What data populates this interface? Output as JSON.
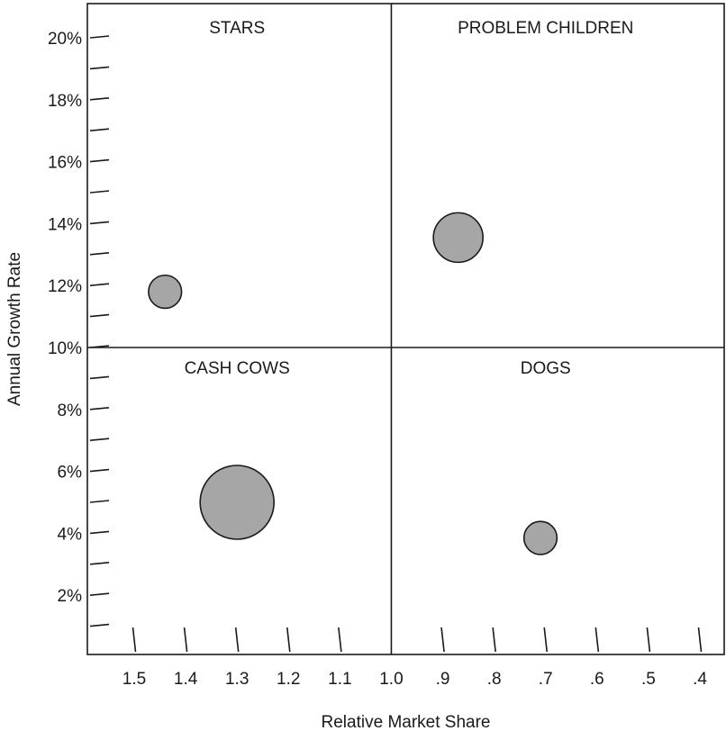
{
  "chart_data": {
    "type": "scatter",
    "title": "",
    "xlabel": "Relative Market Share",
    "ylabel": "Annual Growth Rate",
    "x_reversed": true,
    "xlim": [
      1.6,
      0.38
    ],
    "ylim": [
      0,
      21
    ],
    "x_ticks": [
      {
        "value": 1.5,
        "label": "1.5"
      },
      {
        "value": 1.4,
        "label": "1.4"
      },
      {
        "value": 1.3,
        "label": "1.3"
      },
      {
        "value": 1.2,
        "label": "1.2"
      },
      {
        "value": 1.1,
        "label": "1.1"
      },
      {
        "value": 1.0,
        "label": "1.0"
      },
      {
        "value": 0.9,
        "label": ".9"
      },
      {
        "value": 0.8,
        "label": ".8"
      },
      {
        "value": 0.7,
        "label": ".7"
      },
      {
        "value": 0.6,
        "label": ".6"
      },
      {
        "value": 0.5,
        "label": ".5"
      },
      {
        "value": 0.4,
        "label": ".4"
      }
    ],
    "y_ticks": [
      {
        "value": 1,
        "label": ""
      },
      {
        "value": 2,
        "label": "2%"
      },
      {
        "value": 3,
        "label": ""
      },
      {
        "value": 4,
        "label": "4%"
      },
      {
        "value": 5,
        "label": ""
      },
      {
        "value": 6,
        "label": "6%"
      },
      {
        "value": 7,
        "label": ""
      },
      {
        "value": 8,
        "label": "8%"
      },
      {
        "value": 9,
        "label": ""
      },
      {
        "value": 10,
        "label": "10%"
      },
      {
        "value": 11,
        "label": ""
      },
      {
        "value": 12,
        "label": "12%"
      },
      {
        "value": 13,
        "label": ""
      },
      {
        "value": 14,
        "label": "14%"
      },
      {
        "value": 15,
        "label": ""
      },
      {
        "value": 16,
        "label": "16%"
      },
      {
        "value": 17,
        "label": ""
      },
      {
        "value": 18,
        "label": "18%"
      },
      {
        "value": 19,
        "label": ""
      },
      {
        "value": 20,
        "label": "20%"
      }
    ],
    "dividers": {
      "x": 1.0,
      "y": 10
    },
    "quadrants": [
      {
        "label": "STARS",
        "x": 1.3,
        "y": 20.5
      },
      {
        "label": "PROBLEM CHILDREN",
        "x": 0.7,
        "y": 20.5
      },
      {
        "label": "CASH COWS",
        "x": 1.3,
        "y": 9.5
      },
      {
        "label": "DOGS",
        "x": 0.7,
        "y": 9.5
      }
    ],
    "points": [
      {
        "x": 1.44,
        "y": 11.8,
        "size": 0.2
      },
      {
        "x": 0.87,
        "y": 13.55,
        "size": 0.45
      },
      {
        "x": 1.3,
        "y": 5.0,
        "size": 1.0
      },
      {
        "x": 0.71,
        "y": 3.85,
        "size": 0.2
      }
    ],
    "grid": false,
    "colors": {
      "bubble": "#a6a6a6",
      "stroke": "#1a1a1a"
    }
  }
}
